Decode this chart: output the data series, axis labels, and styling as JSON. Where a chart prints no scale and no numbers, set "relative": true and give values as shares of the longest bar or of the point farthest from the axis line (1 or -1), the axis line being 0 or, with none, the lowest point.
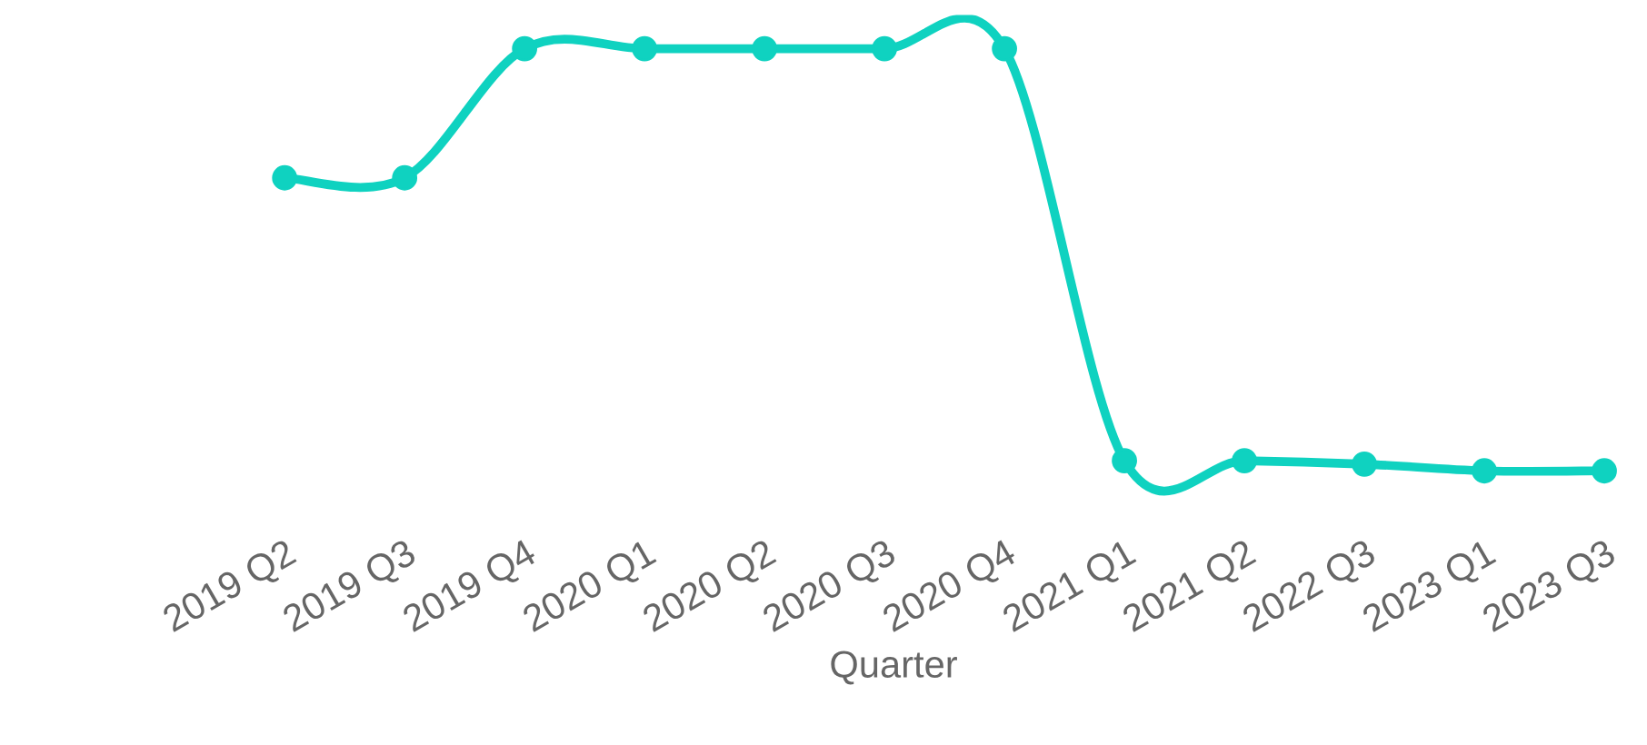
{
  "chart_data": {
    "type": "line",
    "relative": true,
    "xlabel": "Quarter",
    "categories": [
      "2019 Q2",
      "2019 Q3",
      "2019 Q4",
      "2020 Q1",
      "2020 Q2",
      "2020 Q3",
      "2020 Q4",
      "2021 Q1",
      "2021 Q2",
      "2022 Q3",
      "2023 Q1",
      "2023 Q3"
    ],
    "series": [
      {
        "color": "#0fd2c0",
        "values": [
          0.694,
          0.694,
          1,
          1,
          1,
          1,
          1,
          0.024,
          0.024,
          0.016,
          0,
          0
        ]
      }
    ],
    "marker": "circle",
    "line_style": "solid",
    "grid": false,
    "legend": false
  }
}
